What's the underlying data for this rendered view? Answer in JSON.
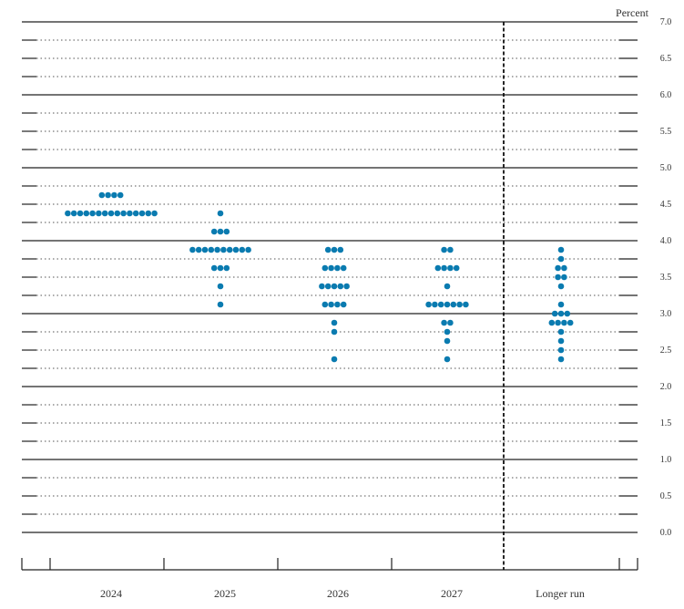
{
  "chart_data": {
    "type": "scatter",
    "title": "",
    "ylabel": "Percent",
    "ylim": [
      0,
      7
    ],
    "yticks": [
      "0.0",
      "0.5",
      "1.0",
      "1.5",
      "2.0",
      "2.5",
      "3.0",
      "3.5",
      "4.0",
      "4.5",
      "5.0",
      "5.5",
      "6.0",
      "6.5",
      "7.0"
    ],
    "categories": [
      "2024",
      "2025",
      "2026",
      "2027",
      "Longer run"
    ],
    "dot_color": "#0a7bb0",
    "dots": [
      {
        "category": "2024",
        "counts": [
          [
            4.625,
            4
          ],
          [
            4.375,
            15
          ]
        ]
      },
      {
        "category": "2025",
        "counts": [
          [
            4.375,
            1
          ],
          [
            4.125,
            3
          ],
          [
            3.875,
            10
          ],
          [
            3.625,
            3
          ],
          [
            3.375,
            1
          ],
          [
            3.125,
            1
          ]
        ]
      },
      {
        "category": "2026",
        "counts": [
          [
            3.875,
            3
          ],
          [
            3.625,
            4
          ],
          [
            3.375,
            5
          ],
          [
            3.125,
            4
          ],
          [
            2.875,
            1
          ],
          [
            2.75,
            1
          ],
          [
            2.375,
            1
          ]
        ]
      },
      {
        "category": "2027",
        "counts": [
          [
            3.875,
            2
          ],
          [
            3.625,
            4
          ],
          [
            3.375,
            1
          ],
          [
            3.125,
            7
          ],
          [
            2.875,
            2
          ],
          [
            2.75,
            1
          ],
          [
            2.625,
            1
          ],
          [
            2.375,
            1
          ]
        ]
      },
      {
        "category": "Longer run",
        "counts": [
          [
            3.875,
            1
          ],
          [
            3.75,
            1
          ],
          [
            3.625,
            2
          ],
          [
            3.5,
            2
          ],
          [
            3.375,
            1
          ],
          [
            3.125,
            1
          ],
          [
            3.0,
            3
          ],
          [
            2.875,
            4
          ],
          [
            2.75,
            1
          ],
          [
            2.625,
            1
          ],
          [
            2.5,
            1
          ],
          [
            2.375,
            1
          ]
        ]
      }
    ],
    "separator": "dashed line before Longer run"
  }
}
